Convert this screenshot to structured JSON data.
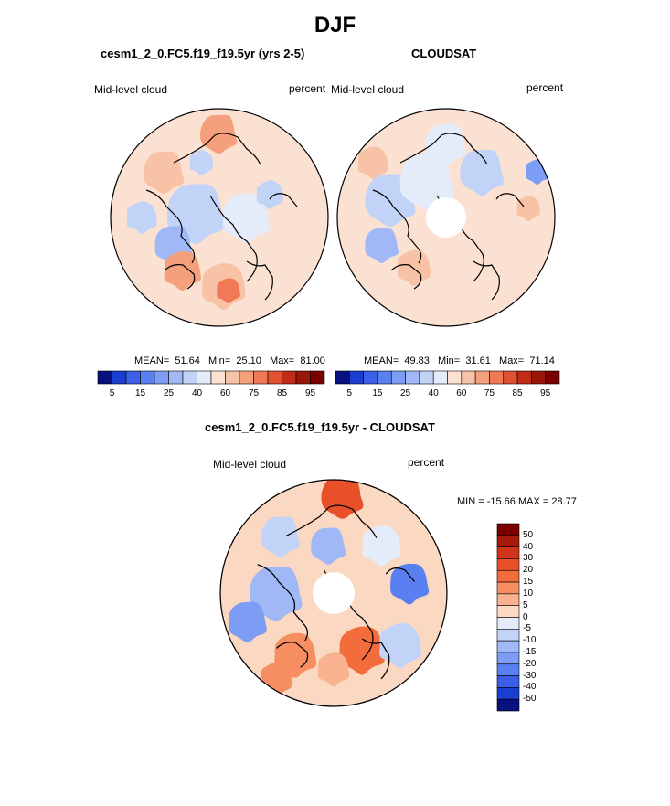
{
  "page_title": "DJF",
  "panels": [
    {
      "title": "cesm1_2_0.FC5.f19_f19.5yr (yrs 2-5)",
      "left_label": "Mid-level cloud",
      "right_label": "percent",
      "stats": {
        "mean_label": "MEAN=",
        "mean": "51.64",
        "min_label": "Min=",
        "min": "25.10",
        "max_label": "Max=",
        "max": "81.00"
      },
      "polar_hole": false
    },
    {
      "title": "CLOUDSAT",
      "left_label": "Mid-level cloud",
      "right_label": "percent",
      "stats": {
        "mean_label": "MEAN=",
        "mean": "49.83",
        "min_label": "Min=",
        "min": "31.61",
        "max_label": "Max=",
        "max": "71.14"
      },
      "polar_hole": true
    },
    {
      "title": "cesm1_2_0.FC5.f19_f19.5yr - CLOUDSAT",
      "left_label": "Mid-level cloud",
      "right_label": "percent",
      "minmax_text": "MIN = -15.66 MAX =  28.77",
      "polar_hole": true
    }
  ],
  "chart_data": [
    {
      "type": "heatmap",
      "projection": "north-polar-stereographic",
      "title": "cesm1_2_0.FC5.f19_f19.5yr (yrs 2-5)",
      "variable": "Mid-level cloud",
      "units": "percent",
      "mean": 51.64,
      "min": 25.1,
      "max": 81.0,
      "colorbar_levels": [
        5,
        10,
        15,
        20,
        25,
        30,
        40,
        50,
        60,
        70,
        75,
        80,
        85,
        90,
        95
      ],
      "colorbar_tick_labels": [
        "5",
        "15",
        "25",
        "40",
        "60",
        "75",
        "85",
        "95"
      ],
      "colorbar_colors": [
        "#08107e",
        "#1a3fd0",
        "#3b5fe6",
        "#5a7ff0",
        "#7d9cf4",
        "#a0b8f6",
        "#c2d3f8",
        "#e4ecfa",
        "#fbe1d2",
        "#f8c2a6",
        "#f5a07c",
        "#f07a55",
        "#e0522f",
        "#c02c16",
        "#9a1608",
        "#7a0000"
      ]
    },
    {
      "type": "heatmap",
      "projection": "north-polar-stereographic",
      "title": "CLOUDSAT",
      "variable": "Mid-level cloud",
      "units": "percent",
      "mean": 49.83,
      "min": 31.61,
      "max": 71.14,
      "colorbar_levels": [
        5,
        10,
        15,
        20,
        25,
        30,
        40,
        50,
        60,
        70,
        75,
        80,
        85,
        90,
        95
      ],
      "colorbar_tick_labels": [
        "5",
        "15",
        "25",
        "40",
        "60",
        "75",
        "85",
        "95"
      ],
      "colorbar_colors": [
        "#08107e",
        "#1a3fd0",
        "#3b5fe6",
        "#5a7ff0",
        "#7d9cf4",
        "#a0b8f6",
        "#c2d3f8",
        "#e4ecfa",
        "#fbe1d2",
        "#f8c2a6",
        "#f5a07c",
        "#f07a55",
        "#e0522f",
        "#c02c16",
        "#9a1608",
        "#7a0000"
      ]
    },
    {
      "type": "heatmap",
      "projection": "north-polar-stereographic",
      "title": "cesm1_2_0.FC5.f19_f19.5yr - CLOUDSAT",
      "variable": "Mid-level cloud",
      "units": "percent",
      "min": -15.66,
      "max": 28.77,
      "colorbar_levels": [
        -50,
        -40,
        -30,
        -20,
        -15,
        -10,
        -5,
        0,
        5,
        10,
        15,
        20,
        30,
        40,
        50
      ],
      "colorbar_tick_labels": [
        "50",
        "40",
        "30",
        "20",
        "15",
        "10",
        "5",
        "0",
        "-5",
        "-10",
        "-15",
        "-20",
        "-30",
        "-40",
        "-50"
      ],
      "colorbar_colors": [
        "#7a0000",
        "#a81a0a",
        "#d0341a",
        "#e8502a",
        "#f26c3c",
        "#f68e62",
        "#f8b290",
        "#fbd8c2",
        "#e4ecfa",
        "#c2d3f8",
        "#a0b8f6",
        "#7d9cf4",
        "#5a7ff0",
        "#3b5fe6",
        "#1a3fd0",
        "#08107e"
      ]
    }
  ]
}
